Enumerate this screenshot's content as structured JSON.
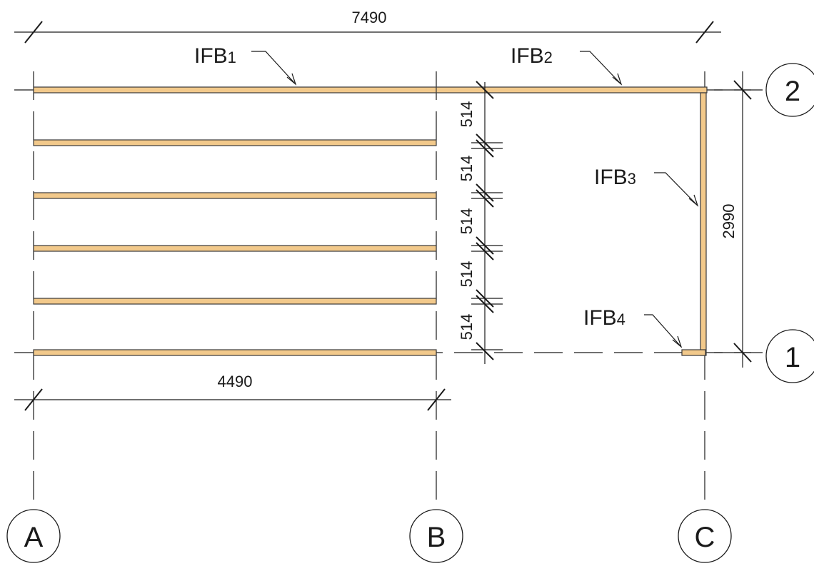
{
  "dimensions": {
    "overall_top": "7490",
    "span_bottom": "4490",
    "right_side": "2990",
    "spacing": [
      "514",
      "514",
      "514",
      "514",
      "514"
    ]
  },
  "beam_labels": {
    "ifb1": {
      "main": "IFB",
      "sub": "1"
    },
    "ifb2": {
      "main": "IFB",
      "sub": "2"
    },
    "ifb3": {
      "main": "IFB",
      "sub": "3"
    },
    "ifb4": {
      "main": "IFB",
      "sub": "4"
    }
  },
  "grid_bubbles": {
    "a": "A",
    "b": "B",
    "c": "C",
    "row1": "1",
    "row2": "2"
  },
  "colors": {
    "beam_fill": "#f2c98b",
    "line": "#1a1a1a"
  }
}
